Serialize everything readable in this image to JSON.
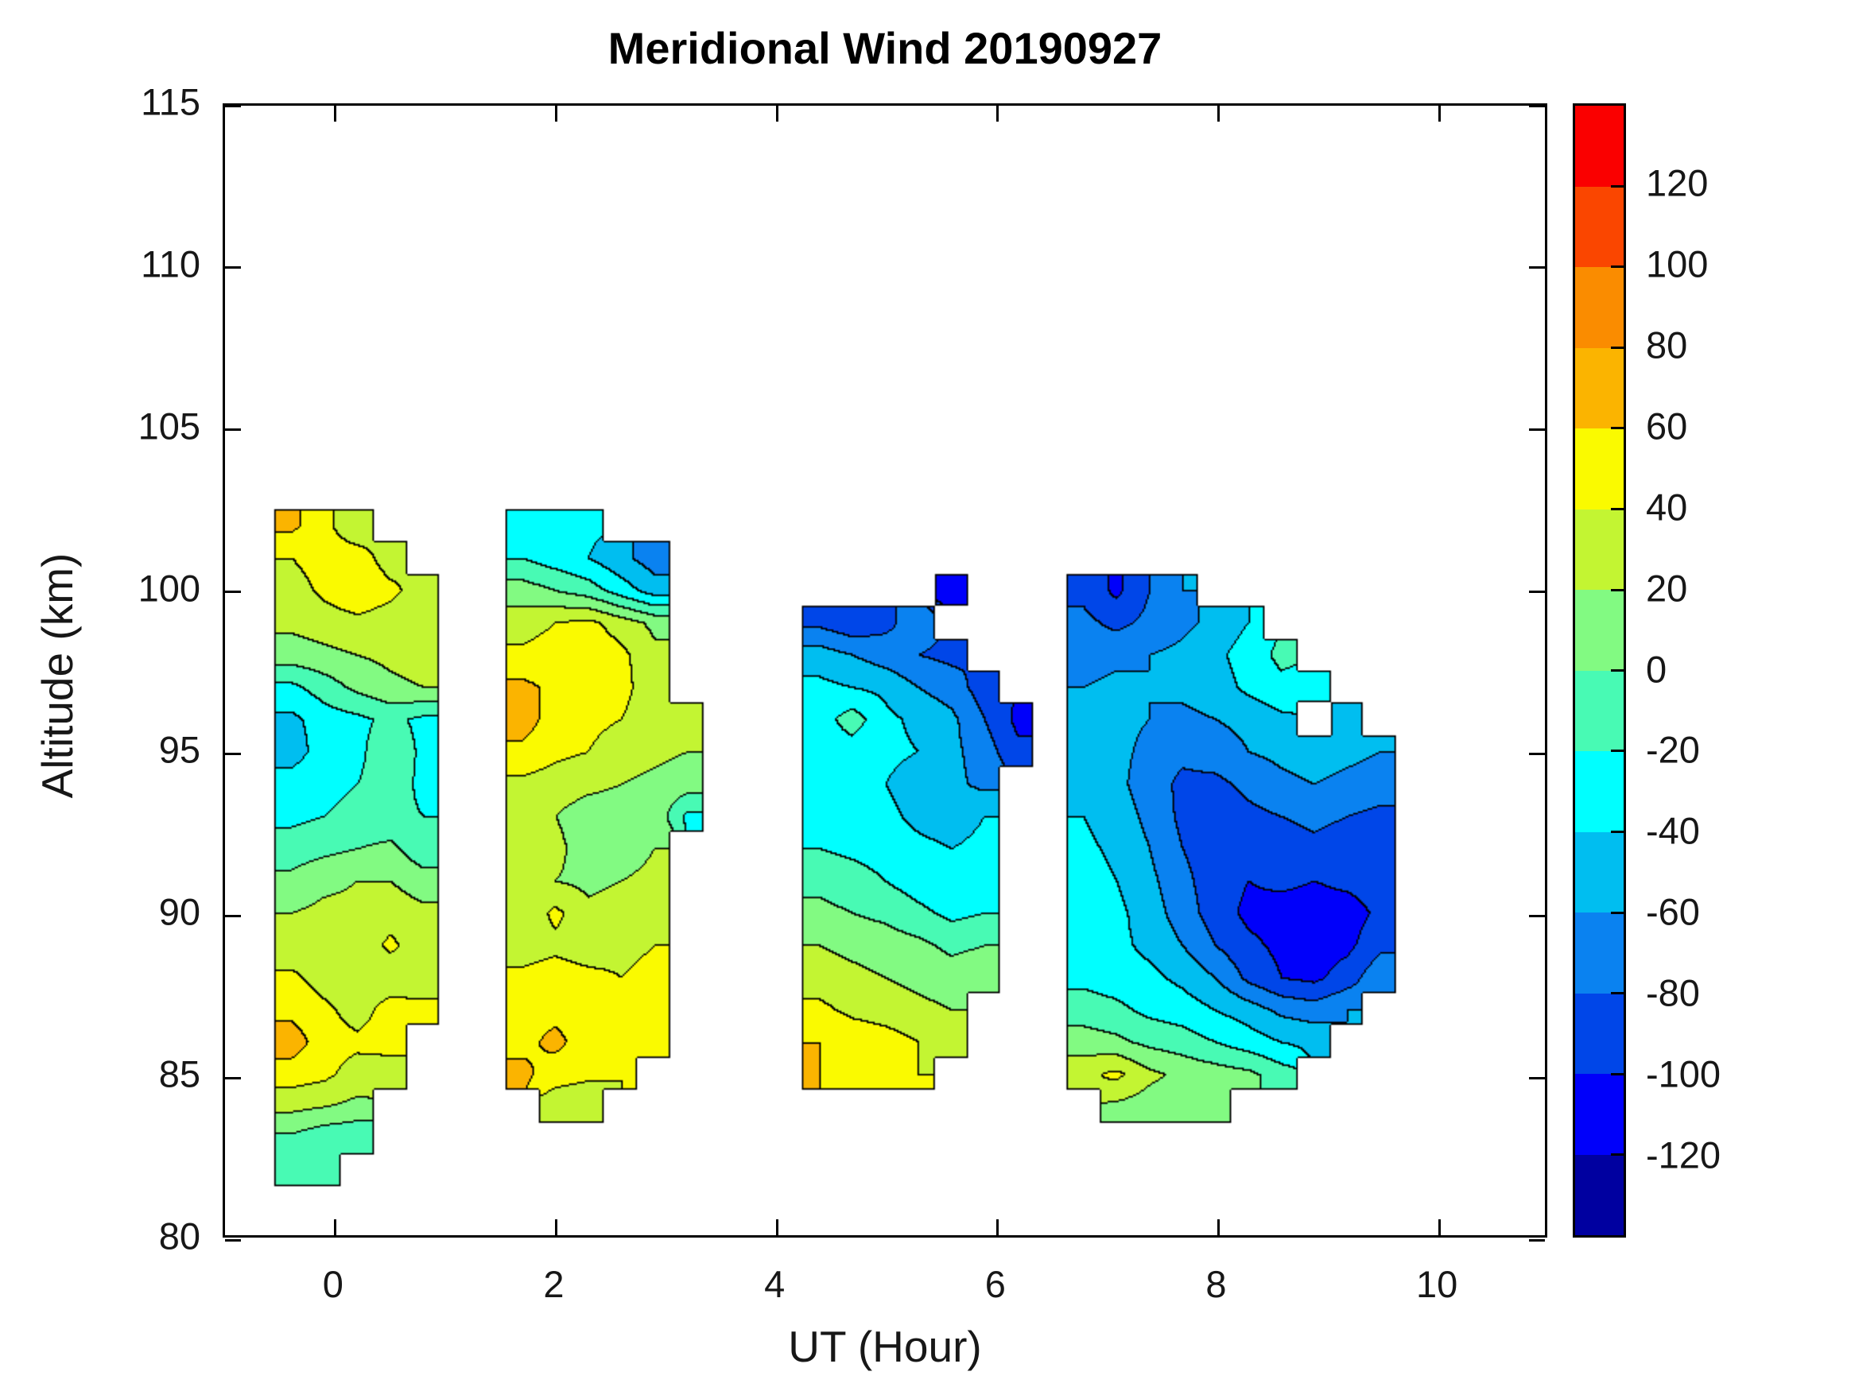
{
  "title": "Meridional Wind 20190927",
  "chart_data": {
    "type": "heatmap",
    "subtype": "filled-contour",
    "title": "Meridional Wind 20190927",
    "xlabel": "UT (Hour)",
    "ylabel": "Altitude (km)",
    "xlim": [
      -1,
      11
    ],
    "ylim": [
      80,
      115
    ],
    "xticks": [
      0,
      2,
      4,
      6,
      8,
      10
    ],
    "yticks": [
      80,
      85,
      90,
      95,
      100,
      105,
      110,
      115
    ],
    "grid_on": false,
    "contour_interval": 20,
    "colorbar": {
      "position": "right",
      "min": -140,
      "max": 140,
      "ticks": [
        -120,
        -100,
        -80,
        -60,
        -40,
        -20,
        0,
        20,
        40,
        60,
        80,
        100,
        120
      ],
      "band_colors_low_to_high": [
        "#0000A0",
        "#0000FA",
        "#0046E8",
        "#0A82F0",
        "#00BEF0",
        "#00FFFF",
        "#48FAB4",
        "#82FA82",
        "#C3F532",
        "#FAFA00",
        "#FBB400",
        "#FA8C00",
        "#FA4600",
        "#FA0000"
      ]
    },
    "frame_color": "#000000",
    "contour_line_color": "#000000",
    "x": [
      -0.4,
      -0.1,
      0.2,
      0.5,
      0.8,
      1.1,
      1.4,
      1.7,
      2.0,
      2.3,
      2.6,
      2.9,
      3.2,
      3.5,
      3.8,
      4.1,
      4.4,
      4.7,
      5.0,
      5.3,
      5.6,
      5.9,
      6.2,
      6.5,
      6.8,
      7.1,
      7.4,
      7.7,
      8.0,
      8.3,
      8.6,
      8.9,
      9.2,
      9.5
    ],
    "altitude": [
      103,
      102,
      101,
      100,
      99,
      98,
      97,
      96,
      95,
      94,
      93,
      92,
      91,
      90,
      89,
      88,
      87,
      86,
      85,
      84,
      83,
      82
    ],
    "values": [
      [
        null,
        null,
        null,
        null,
        null,
        null,
        null,
        null,
        null,
        null,
        null,
        null,
        null,
        null,
        null,
        null,
        null,
        null,
        null,
        null,
        null,
        null,
        null,
        null,
        null,
        null,
        null,
        null,
        null,
        null,
        null,
        null,
        null,
        null
      ],
      [
        65,
        45,
        25,
        null,
        null,
        null,
        null,
        -30,
        -30,
        -35,
        null,
        null,
        null,
        null,
        null,
        null,
        null,
        null,
        null,
        null,
        null,
        null,
        null,
        null,
        null,
        null,
        null,
        null,
        null,
        null,
        null,
        null,
        null,
        null
      ],
      [
        40,
        50,
        50,
        30,
        null,
        null,
        null,
        -20,
        -30,
        -40,
        -55,
        -70,
        null,
        null,
        null,
        null,
        null,
        null,
        null,
        null,
        null,
        null,
        null,
        null,
        null,
        null,
        null,
        null,
        null,
        null,
        null,
        null,
        null,
        null
      ],
      [
        30,
        45,
        55,
        45,
        30,
        null,
        null,
        10,
        0,
        -10,
        -30,
        -50,
        null,
        null,
        null,
        null,
        null,
        null,
        null,
        null,
        -110,
        null,
        null,
        null,
        -85,
        -105,
        -80,
        -60,
        null,
        null,
        null,
        null,
        null,
        null
      ],
      [
        25,
        30,
        35,
        30,
        25,
        null,
        null,
        30,
        40,
        45,
        30,
        15,
        null,
        null,
        null,
        null,
        -85,
        -95,
        -85,
        -70,
        null,
        null,
        null,
        null,
        -75,
        -85,
        -75,
        -65,
        -55,
        -40,
        null,
        null,
        null,
        null
      ],
      [
        10,
        15,
        20,
        25,
        30,
        null,
        null,
        45,
        50,
        55,
        45,
        25,
        null,
        null,
        null,
        null,
        -50,
        -60,
        -70,
        -80,
        -85,
        null,
        null,
        null,
        -70,
        -65,
        -60,
        -55,
        -45,
        -30,
        -15,
        null,
        null,
        null
      ],
      [
        -25,
        -10,
        5,
        15,
        20,
        null,
        null,
        65,
        55,
        50,
        45,
        30,
        null,
        null,
        null,
        null,
        -35,
        -40,
        -45,
        -60,
        -70,
        -90,
        null,
        null,
        -60,
        -55,
        -60,
        -55,
        -50,
        -35,
        -25,
        -30,
        null,
        null
      ],
      [
        -45,
        -30,
        -25,
        -15,
        -25,
        null,
        null,
        70,
        50,
        45,
        40,
        30,
        20,
        null,
        null,
        null,
        -30,
        -10,
        -35,
        -45,
        -55,
        -80,
        -105,
        null,
        -50,
        -55,
        -60,
        -65,
        -60,
        -55,
        -45,
        null,
        -50,
        null
      ],
      [
        -50,
        -30,
        -25,
        -5,
        -25,
        null,
        null,
        55,
        45,
        40,
        30,
        25,
        20,
        null,
        null,
        null,
        -30,
        -30,
        -35,
        -40,
        -55,
        -70,
        -95,
        null,
        -45,
        -55,
        -65,
        -75,
        -70,
        -60,
        -55,
        -50,
        -55,
        -60
      ],
      [
        -30,
        -25,
        -20,
        -10,
        -25,
        null,
        null,
        35,
        30,
        25,
        20,
        15,
        10,
        null,
        null,
        null,
        -25,
        -30,
        -40,
        -50,
        -55,
        -65,
        null,
        null,
        -45,
        -55,
        -70,
        -85,
        -85,
        -75,
        -65,
        -60,
        -65,
        -70
      ],
      [
        -25,
        -20,
        -15,
        -15,
        -20,
        null,
        null,
        30,
        20,
        10,
        10,
        15,
        -25,
        null,
        null,
        null,
        -30,
        -25,
        -35,
        -45,
        -50,
        -40,
        null,
        null,
        -40,
        -50,
        -65,
        -85,
        -90,
        -85,
        -80,
        -75,
        -80,
        -85
      ],
      [
        -10,
        -5,
        0,
        5,
        -15,
        null,
        null,
        30,
        25,
        10,
        10,
        20,
        null,
        null,
        null,
        null,
        -20,
        -25,
        -30,
        -35,
        -40,
        -35,
        null,
        null,
        -35,
        -45,
        -60,
        -80,
        -90,
        -95,
        -90,
        -85,
        -90,
        -90
      ],
      [
        5,
        15,
        20,
        20,
        10,
        null,
        null,
        25,
        20,
        15,
        20,
        25,
        null,
        null,
        null,
        null,
        -5,
        -10,
        -20,
        -30,
        -35,
        -30,
        null,
        null,
        -30,
        -40,
        -55,
        -75,
        -90,
        -100,
        -95,
        -100,
        -95,
        -90
      ],
      [
        20,
        25,
        25,
        30,
        25,
        null,
        null,
        25,
        45,
        25,
        30,
        35,
        null,
        null,
        null,
        null,
        5,
        0,
        -5,
        -15,
        -25,
        -20,
        null,
        null,
        -25,
        -35,
        -50,
        -70,
        -90,
        -105,
        -110,
        -110,
        -110,
        -95
      ],
      [
        25,
        30,
        25,
        45,
        25,
        null,
        null,
        30,
        35,
        30,
        35,
        40,
        null,
        null,
        null,
        null,
        20,
        15,
        10,
        5,
        -5,
        0,
        null,
        null,
        -30,
        -35,
        -45,
        -60,
        -80,
        -95,
        -105,
        -110,
        -105,
        -85
      ],
      [
        45,
        30,
        25,
        25,
        30,
        null,
        null,
        45,
        50,
        45,
        40,
        45,
        null,
        null,
        null,
        null,
        30,
        25,
        20,
        15,
        10,
        15,
        null,
        null,
        -25,
        -30,
        -35,
        -45,
        -60,
        -85,
        -100,
        -105,
        -90,
        -65
      ],
      [
        55,
        45,
        30,
        50,
        45,
        null,
        null,
        50,
        55,
        50,
        45,
        50,
        null,
        null,
        null,
        null,
        45,
        35,
        30,
        25,
        20,
        null,
        null,
        null,
        -10,
        -15,
        -25,
        -30,
        -40,
        -50,
        -65,
        -70,
        -60,
        null
      ],
      [
        70,
        50,
        45,
        50,
        null,
        null,
        null,
        55,
        65,
        50,
        45,
        40,
        null,
        null,
        null,
        null,
        60,
        55,
        50,
        40,
        30,
        null,
        null,
        null,
        10,
        5,
        -5,
        -10,
        -20,
        -30,
        -40,
        -45,
        null,
        null
      ],
      [
        50,
        45,
        30,
        25,
        null,
        null,
        null,
        65,
        50,
        45,
        40,
        null,
        null,
        null,
        null,
        null,
        60,
        50,
        45,
        40,
        null,
        null,
        null,
        null,
        35,
        45,
        25,
        15,
        10,
        5,
        -10,
        null,
        null,
        null
      ],
      [
        25,
        20,
        15,
        null,
        null,
        null,
        null,
        null,
        25,
        20,
        null,
        null,
        null,
        null,
        null,
        null,
        null,
        null,
        null,
        null,
        null,
        null,
        null,
        null,
        null,
        15,
        10,
        5,
        5,
        null,
        null,
        null,
        null,
        null
      ],
      [
        -5,
        -15,
        -20,
        null,
        null,
        null,
        null,
        null,
        null,
        null,
        null,
        null,
        null,
        null,
        null,
        null,
        null,
        null,
        null,
        null,
        null,
        null,
        null,
        null,
        null,
        null,
        null,
        null,
        null,
        null,
        null,
        null,
        null,
        null
      ],
      [
        -15,
        -20,
        null,
        null,
        null,
        null,
        null,
        null,
        null,
        null,
        null,
        null,
        null,
        null,
        null,
        null,
        null,
        null,
        null,
        null,
        null,
        null,
        null,
        null,
        null,
        null,
        null,
        null,
        null,
        null,
        null,
        null,
        null,
        null
      ]
    ]
  }
}
